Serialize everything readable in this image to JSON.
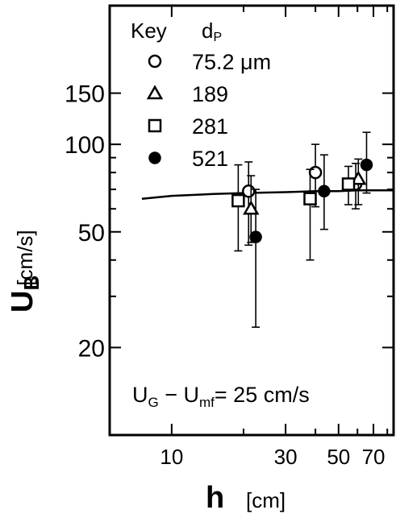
{
  "chart_data": {
    "type": "scatter",
    "title": "",
    "xlabel": "h",
    "xunit": "[cm]",
    "ylabel": "U_B",
    "yunit": "[cm/s]",
    "x_scale": "log",
    "y_scale": "log",
    "xlim": [
      5.5,
      85
    ],
    "ylim": [
      10,
      300
    ],
    "xticks": [
      10,
      20,
      30,
      40,
      50,
      60,
      70,
      80
    ],
    "xtick_labels": [
      "10",
      "30",
      "50",
      "70"
    ],
    "xtick_label_values": [
      10,
      30,
      50,
      70
    ],
    "yticks": [
      20,
      30,
      40,
      50,
      60,
      70,
      80,
      90,
      100,
      150
    ],
    "ytick_labels": [
      "20",
      "50",
      "100",
      "150"
    ],
    "ytick_label_values": [
      20,
      50,
      100,
      150
    ],
    "legend": {
      "title": "Key",
      "column_header_main": "d",
      "column_header_sub": "P",
      "position": "top",
      "entries": [
        {
          "label": "75.2 μm",
          "marker": "circle-open"
        },
        {
          "label": "189",
          "marker": "triangle-open"
        },
        {
          "label": "281",
          "marker": "square-open"
        },
        {
          "label": "521",
          "marker": "circle-filled"
        }
      ]
    },
    "annotation": {
      "parts": [
        "U",
        "G",
        " − U",
        "mf",
        "= 25 cm/s"
      ]
    },
    "series": [
      {
        "name": "75.2 μm",
        "marker": "circle-open",
        "points": [
          {
            "x": 21.0,
            "y": 69,
            "ylow": 45,
            "yhigh": 87
          },
          {
            "x": 40.0,
            "y": 80,
            "ylow": 61,
            "yhigh": 100
          },
          {
            "x": 59.0,
            "y": 73,
            "ylow": 60,
            "yhigh": 86
          }
        ]
      },
      {
        "name": "189",
        "marker": "triangle-open",
        "points": [
          {
            "x": 21.5,
            "y": 60,
            "ylow": 46,
            "yhigh": 78
          },
          {
            "x": 60.5,
            "y": 76,
            "ylow": 62,
            "yhigh": 89
          }
        ]
      },
      {
        "name": "281",
        "marker": "square-open",
        "points": [
          {
            "x": 19.0,
            "y": 64,
            "ylow": 43,
            "yhigh": 85
          },
          {
            "x": 38.0,
            "y": 65,
            "ylow": 40,
            "yhigh": 82
          },
          {
            "x": 55.0,
            "y": 73,
            "ylow": 62,
            "yhigh": 84
          }
        ]
      },
      {
        "name": "521",
        "marker": "circle-filled",
        "points": [
          {
            "x": 22.5,
            "y": 48,
            "ylow": 23.5,
            "yhigh": 70
          },
          {
            "x": 43.5,
            "y": 69,
            "ylow": 51,
            "yhigh": 92
          },
          {
            "x": 65.5,
            "y": 85,
            "ylow": 68,
            "yhigh": 110
          }
        ]
      }
    ],
    "fit_curve": {
      "x": [
        7.5,
        10,
        15,
        20,
        30,
        40,
        50,
        60,
        70,
        85
      ],
      "y": [
        65,
        66.5,
        67.5,
        68,
        68.5,
        69,
        69,
        69.5,
        69.5,
        69.5
      ]
    }
  }
}
